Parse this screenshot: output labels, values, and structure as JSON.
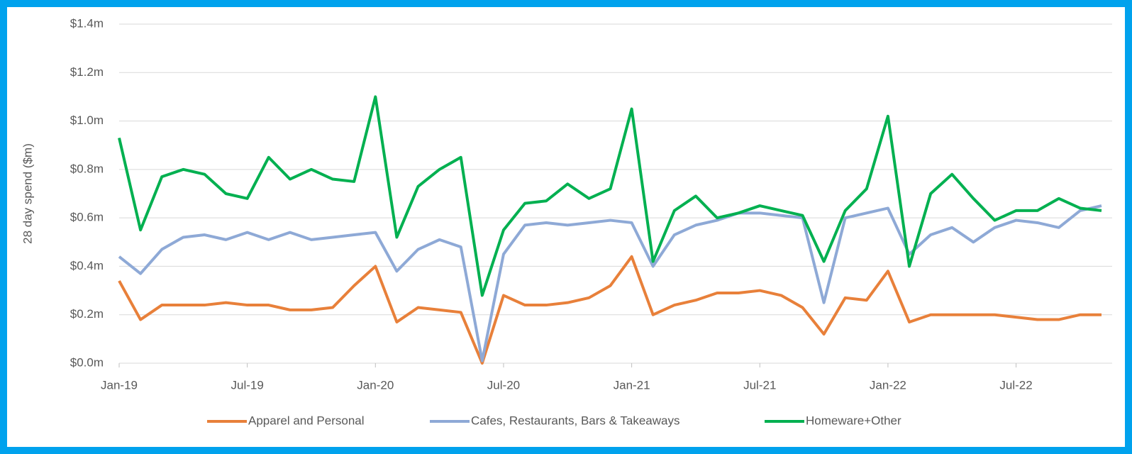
{
  "chart_data": {
    "type": "line",
    "y_label": "28 day spend ($m)",
    "x": [
      "Jan-19",
      "Feb-19",
      "Mar-19",
      "Apr-19",
      "May-19",
      "Jun-19",
      "Jul-19",
      "Aug-19",
      "Sep-19",
      "Oct-19",
      "Nov-19",
      "Dec-19",
      "Jan-20",
      "Feb-20",
      "Mar-20",
      "Apr-20",
      "May-20",
      "Jun-20",
      "Jul-20",
      "Aug-20",
      "Sep-20",
      "Oct-20",
      "Nov-20",
      "Dec-20",
      "Jan-21",
      "Feb-21",
      "Mar-21",
      "Apr-21",
      "May-21",
      "Jun-21",
      "Jul-21",
      "Aug-21",
      "Sep-21",
      "Oct-21",
      "Nov-21",
      "Dec-21",
      "Jan-22",
      "Feb-22",
      "Mar-22",
      "Apr-22",
      "May-22",
      "Jun-22",
      "Jul-22",
      "Aug-22",
      "Sep-22",
      "Oct-22",
      "Nov-22"
    ],
    "series": [
      {
        "name": "Apparel and Personal",
        "color": "#e8803a",
        "values": [
          0.34,
          0.18,
          0.24,
          0.24,
          0.24,
          0.25,
          0.24,
          0.24,
          0.22,
          0.22,
          0.23,
          0.32,
          0.4,
          0.17,
          0.23,
          0.22,
          0.21,
          0.0,
          0.28,
          0.24,
          0.24,
          0.25,
          0.27,
          0.32,
          0.44,
          0.2,
          0.24,
          0.26,
          0.29,
          0.29,
          0.3,
          0.28,
          0.23,
          0.12,
          0.27,
          0.26,
          0.38,
          0.17,
          0.2,
          0.2,
          0.2,
          0.2,
          0.19,
          0.18,
          0.18,
          0.2,
          0.2
        ]
      },
      {
        "name": "Cafes, Restaurants, Bars & Takeaways",
        "color": "#8ea9d6",
        "values": [
          0.44,
          0.37,
          0.47,
          0.52,
          0.53,
          0.51,
          0.54,
          0.51,
          0.54,
          0.51,
          0.52,
          0.53,
          0.54,
          0.38,
          0.47,
          0.51,
          0.48,
          0.01,
          0.45,
          0.57,
          0.58,
          0.57,
          0.58,
          0.59,
          0.58,
          0.4,
          0.53,
          0.57,
          0.59,
          0.62,
          0.62,
          0.61,
          0.6,
          0.25,
          0.6,
          0.62,
          0.64,
          0.45,
          0.53,
          0.56,
          0.5,
          0.56,
          0.59,
          0.58,
          0.56,
          0.63,
          0.65
        ]
      },
      {
        "name": "Homeware+Other",
        "color": "#00b050",
        "values": [
          0.93,
          0.55,
          0.77,
          0.8,
          0.78,
          0.7,
          0.68,
          0.85,
          0.76,
          0.8,
          0.76,
          0.75,
          1.1,
          0.52,
          0.73,
          0.8,
          0.85,
          0.28,
          0.55,
          0.66,
          0.67,
          0.74,
          0.68,
          0.72,
          1.05,
          0.42,
          0.63,
          0.69,
          0.6,
          0.62,
          0.65,
          0.63,
          0.61,
          0.42,
          0.63,
          0.72,
          1.02,
          0.4,
          0.7,
          0.78,
          0.68,
          0.59,
          0.63,
          0.63,
          0.68,
          0.64,
          0.63
        ]
      }
    ],
    "ylim": [
      0,
      1.4
    ],
    "yticks": [
      {
        "value": 0,
        "label": "$0.0m"
      },
      {
        "value": 0.2,
        "label": "$0.2m"
      },
      {
        "value": 0.4,
        "label": "$0.4m"
      },
      {
        "value": 0.6,
        "label": "$0.6m"
      },
      {
        "value": 0.8,
        "label": "$0.8m"
      },
      {
        "value": 1.0,
        "label": "$1.0m"
      },
      {
        "value": 1.2,
        "label": "$1.2m"
      },
      {
        "value": 1.4,
        "label": "$1.4m"
      }
    ],
    "grid": true,
    "legend": "bottom"
  }
}
